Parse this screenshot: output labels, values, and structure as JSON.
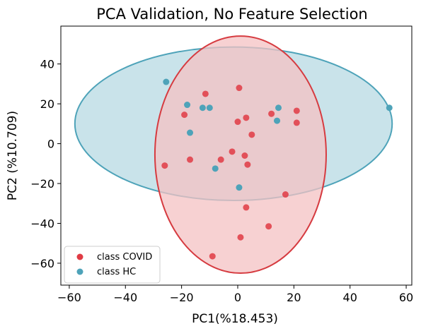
{
  "chart_data": {
    "type": "scatter",
    "title": "PCA Validation, No Feature Selection",
    "xlabel": "PC1(%18.453)",
    "ylabel": "PC2 (%10.709)",
    "xlim": [
      -63,
      62
    ],
    "ylim": [
      -71,
      59
    ],
    "xticks": [
      -60,
      -40,
      -20,
      0,
      20,
      40,
      60
    ],
    "yticks": [
      -60,
      -40,
      -20,
      0,
      20,
      40
    ],
    "xtick_labels": [
      "−60",
      "−40",
      "−20",
      "0",
      "20",
      "40",
      "60"
    ],
    "ytick_labels": [
      "−60",
      "−40",
      "−20",
      "0",
      "20",
      "40"
    ],
    "legend_position": "lower-left",
    "grid": false,
    "series": [
      {
        "name": "class COVID",
        "color": "#e03b44",
        "ellipse": {
          "center": [
            1,
            -5.5
          ],
          "rx": 30.5,
          "ry": 59.5,
          "fill": "#f4c1c3",
          "stroke": "#d63b40"
        },
        "points": [
          [
            0.5,
            28
          ],
          [
            -11.5,
            25
          ],
          [
            -19,
            14.5
          ],
          [
            -26,
            -11
          ],
          [
            -17,
            -8
          ],
          [
            -6,
            -8
          ],
          [
            -2,
            -4
          ],
          [
            0,
            11
          ],
          [
            2.5,
            -6
          ],
          [
            3,
            13
          ],
          [
            3.5,
            -10.5
          ],
          [
            5,
            4.5
          ],
          [
            12,
            15
          ],
          [
            21,
            16.5
          ],
          [
            21,
            10.5
          ],
          [
            17,
            -25.5
          ],
          [
            3,
            -32
          ],
          [
            11,
            -41.5
          ],
          [
            1,
            -47
          ],
          [
            -9,
            -56.5
          ]
        ]
      },
      {
        "name": "class HC",
        "color": "#4ea3b9",
        "ellipse": {
          "center": [
            -1.5,
            10
          ],
          "rx": 56.5,
          "ry": 38.5,
          "fill": "#c9e3ea",
          "stroke": "#4ea3b9"
        },
        "points": [
          [
            -25.5,
            31
          ],
          [
            -18,
            19.5
          ],
          [
            -12.5,
            18
          ],
          [
            -10,
            18
          ],
          [
            -17,
            5.5
          ],
          [
            -8,
            -12.5
          ],
          [
            0.5,
            -22
          ],
          [
            14.5,
            18
          ],
          [
            14,
            11.5
          ],
          [
            54,
            18
          ]
        ]
      }
    ]
  }
}
